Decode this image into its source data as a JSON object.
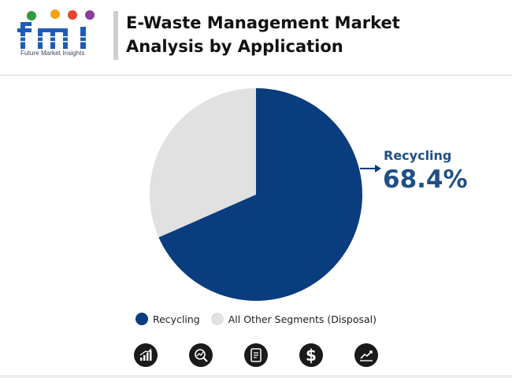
{
  "header": {
    "logo_text": "fmi",
    "logo_subtitle": "Future Market Insights",
    "title_line1": "E-Waste Management Market",
    "title_line2": "Analysis by Application"
  },
  "chart_data": {
    "type": "pie",
    "title": "E-Waste Management Market Analysis by Application",
    "slices": [
      {
        "label": "Recycling",
        "value": 68.4,
        "color": "#0a3d7e"
      },
      {
        "label": "All Other Segments (Disposal)",
        "value": 31.6,
        "color": "#e1e1e1"
      }
    ],
    "start_angle_deg": 0,
    "direction": "clockwise",
    "annotation": {
      "label": "Recycling",
      "value_text": "68.4%",
      "color": "#1f4f85"
    },
    "legend_position": "bottom"
  },
  "legend": {
    "items": [
      {
        "label": "Recycling",
        "color": "#0a3d7e"
      },
      {
        "label": "All Other Segments (Disposal)",
        "color": "#e1e1e1"
      }
    ]
  },
  "footer_icons": [
    "growth-chart-icon",
    "magnifier-chart-icon",
    "report-document-icon",
    "dollar-icon",
    "trend-chart-icon"
  ]
}
